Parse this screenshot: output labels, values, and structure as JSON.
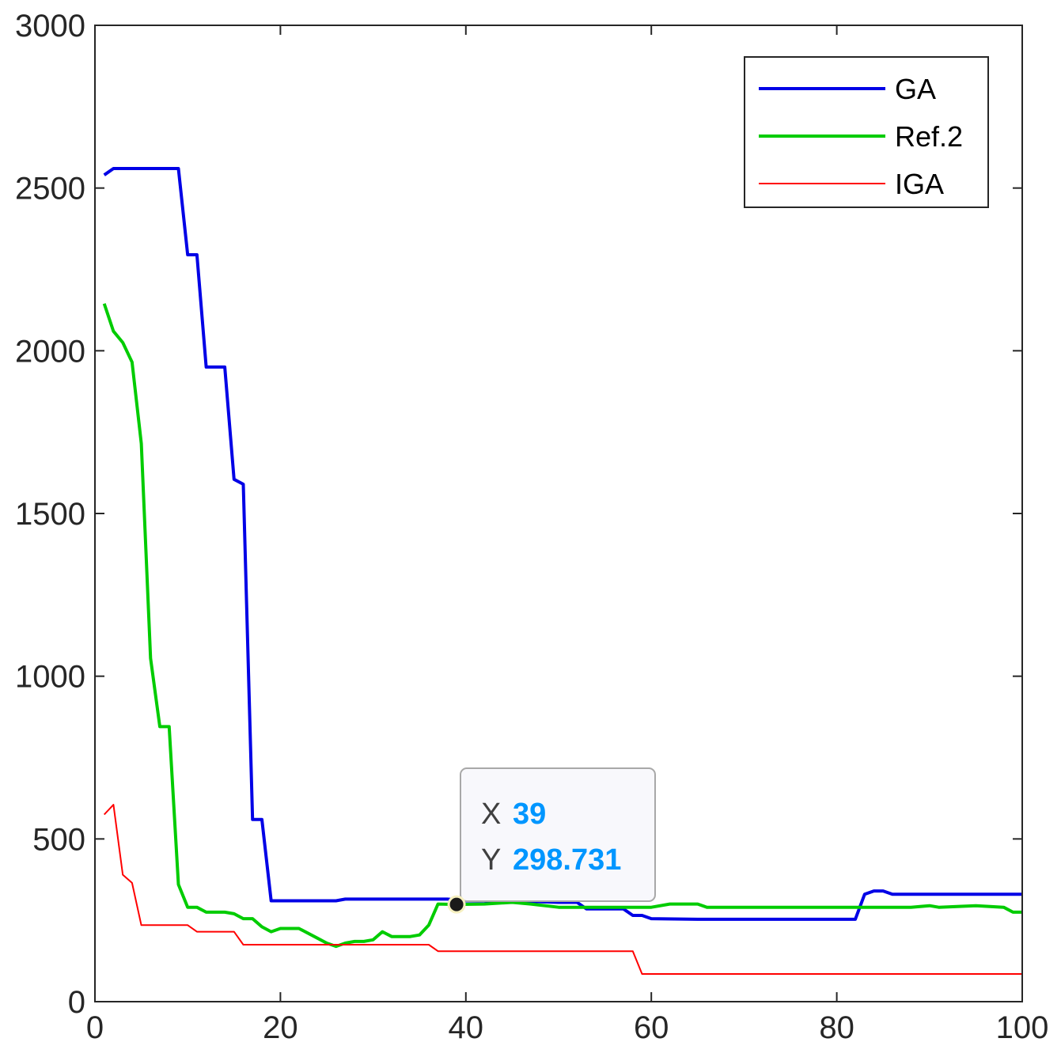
{
  "chart_data": {
    "type": "line",
    "title": "",
    "xlabel": "",
    "ylabel": "",
    "xlim": [
      0,
      100
    ],
    "ylim": [
      0,
      3000
    ],
    "xticks": [
      0,
      20,
      40,
      60,
      80,
      100
    ],
    "yticks": [
      0,
      500,
      1000,
      1500,
      2000,
      2500,
      3000
    ],
    "xtick_labels": [
      "0",
      "20",
      "40",
      "60",
      "80",
      "100"
    ],
    "ytick_labels": [
      "0",
      "500",
      "1000",
      "1500",
      "2000",
      "2500",
      "3000"
    ],
    "grid": false,
    "legend_position": "top-right",
    "series": [
      {
        "name": "GA",
        "color": "#0000e6",
        "points": [
          [
            1,
            2540
          ],
          [
            2,
            2560
          ],
          [
            3,
            2560
          ],
          [
            4,
            2560
          ],
          [
            5,
            2560
          ],
          [
            6,
            2560
          ],
          [
            7,
            2560
          ],
          [
            8,
            2560
          ],
          [
            9,
            2560
          ],
          [
            10,
            2295
          ],
          [
            11,
            2295
          ],
          [
            12,
            1950
          ],
          [
            13,
            1950
          ],
          [
            14,
            1950
          ],
          [
            15,
            1605
          ],
          [
            16,
            1590
          ],
          [
            17,
            560
          ],
          [
            18,
            560
          ],
          [
            19,
            310
          ],
          [
            20,
            310
          ],
          [
            22,
            310
          ],
          [
            24,
            310
          ],
          [
            26,
            310
          ],
          [
            27,
            315
          ],
          [
            30,
            315
          ],
          [
            35,
            315
          ],
          [
            38,
            315
          ],
          [
            40,
            310
          ],
          [
            45,
            310
          ],
          [
            50,
            305
          ],
          [
            52,
            305
          ],
          [
            53,
            285
          ],
          [
            57,
            285
          ],
          [
            58,
            265
          ],
          [
            59,
            265
          ],
          [
            60,
            255
          ],
          [
            65,
            253
          ],
          [
            70,
            253
          ],
          [
            75,
            253
          ],
          [
            80,
            253
          ],
          [
            82,
            253
          ],
          [
            83,
            330
          ],
          [
            84,
            340
          ],
          [
            85,
            340
          ],
          [
            86,
            330
          ],
          [
            90,
            330
          ],
          [
            95,
            330
          ],
          [
            100,
            330
          ]
        ]
      },
      {
        "name": "Ref.2",
        "color": "#00cc00",
        "points": [
          [
            1,
            2145
          ],
          [
            2,
            2060
          ],
          [
            3,
            2025
          ],
          [
            4,
            1965
          ],
          [
            5,
            1715
          ],
          [
            6,
            1055
          ],
          [
            7,
            845
          ],
          [
            8,
            845
          ],
          [
            9,
            360
          ],
          [
            10,
            290
          ],
          [
            11,
            290
          ],
          [
            12,
            275
          ],
          [
            13,
            275
          ],
          [
            14,
            275
          ],
          [
            15,
            270
          ],
          [
            16,
            255
          ],
          [
            17,
            255
          ],
          [
            18,
            230
          ],
          [
            19,
            215
          ],
          [
            20,
            225
          ],
          [
            22,
            225
          ],
          [
            24,
            195
          ],
          [
            25,
            180
          ],
          [
            26,
            170
          ],
          [
            27,
            180
          ],
          [
            28,
            185
          ],
          [
            29,
            185
          ],
          [
            30,
            190
          ],
          [
            31,
            215
          ],
          [
            32,
            200
          ],
          [
            34,
            200
          ],
          [
            35,
            205
          ],
          [
            36,
            235
          ],
          [
            37,
            300
          ],
          [
            39,
            298.731
          ],
          [
            42,
            300
          ],
          [
            45,
            305
          ],
          [
            47,
            300
          ],
          [
            50,
            290
          ],
          [
            55,
            290
          ],
          [
            60,
            290
          ],
          [
            62,
            300
          ],
          [
            65,
            300
          ],
          [
            66,
            290
          ],
          [
            70,
            290
          ],
          [
            80,
            290
          ],
          [
            88,
            290
          ],
          [
            90,
            295
          ],
          [
            91,
            290
          ],
          [
            95,
            295
          ],
          [
            98,
            290
          ],
          [
            99,
            275
          ],
          [
            100,
            275
          ]
        ]
      },
      {
        "name": "IGA",
        "color": "#ff0000",
        "points": [
          [
            1,
            575
          ],
          [
            2,
            605
          ],
          [
            3,
            390
          ],
          [
            4,
            365
          ],
          [
            5,
            235
          ],
          [
            6,
            235
          ],
          [
            7,
            235
          ],
          [
            8,
            235
          ],
          [
            9,
            235
          ],
          [
            10,
            235
          ],
          [
            11,
            215
          ],
          [
            12,
            215
          ],
          [
            13,
            215
          ],
          [
            14,
            215
          ],
          [
            15,
            215
          ],
          [
            16,
            175
          ],
          [
            17,
            175
          ],
          [
            20,
            175
          ],
          [
            25,
            175
          ],
          [
            30,
            175
          ],
          [
            35,
            175
          ],
          [
            36,
            175
          ],
          [
            37,
            155
          ],
          [
            40,
            155
          ],
          [
            45,
            155
          ],
          [
            50,
            155
          ],
          [
            55,
            155
          ],
          [
            58,
            155
          ],
          [
            59,
            85
          ],
          [
            60,
            85
          ],
          [
            65,
            85
          ],
          [
            70,
            85
          ],
          [
            80,
            85
          ],
          [
            90,
            85
          ],
          [
            100,
            85
          ]
        ]
      }
    ],
    "datatip": {
      "x_key": "X",
      "y_key": "Y",
      "x": 39,
      "y": 298.731,
      "x_text": "39",
      "y_text": "298.731"
    }
  }
}
